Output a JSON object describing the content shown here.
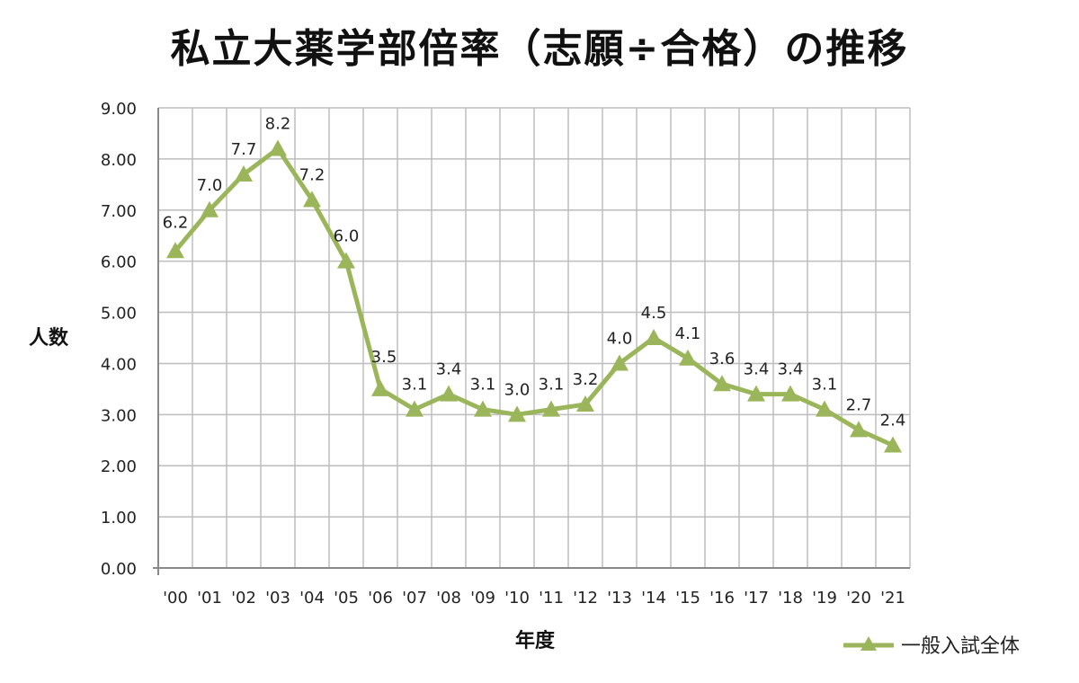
{
  "chart_data": {
    "type": "line",
    "title": "私立大薬学部倍率（志願÷合格）の推移",
    "xlabel": "年度",
    "ylabel": "人数",
    "categories": [
      "'00",
      "'01",
      "'02",
      "'03",
      "'04",
      "'05",
      "'06",
      "'07",
      "'08",
      "'09",
      "'10",
      "'11",
      "'12",
      "'13",
      "'14",
      "'15",
      "'16",
      "'17",
      "'18",
      "'19",
      "'20",
      "'21"
    ],
    "series": [
      {
        "name": "一般入試全体",
        "values": [
          6.2,
          7.0,
          7.7,
          8.2,
          7.2,
          6.0,
          3.5,
          3.1,
          3.4,
          3.1,
          3.0,
          3.1,
          3.2,
          4.0,
          4.5,
          4.1,
          3.6,
          3.4,
          3.4,
          3.1,
          2.7,
          2.4
        ],
        "labels": [
          "6.2",
          "7.0",
          "7.7",
          "8.2",
          "7.2",
          "6.0",
          "3.5",
          "3.1",
          "3.4",
          "3.1",
          "3.0",
          "3.1",
          "3.2",
          "4.0",
          "4.5",
          "4.1",
          "3.6",
          "3.4",
          "3.4",
          "3.1",
          "2.7",
          "2.4"
        ],
        "color": "#9bb55a",
        "marker": "triangle"
      }
    ],
    "ylim": [
      0,
      9
    ],
    "yticks": [
      "0.00",
      "1.00",
      "2.00",
      "3.00",
      "4.00",
      "5.00",
      "6.00",
      "7.00",
      "8.00",
      "9.00"
    ],
    "grid": true,
    "legend_position": "bottom-right"
  }
}
